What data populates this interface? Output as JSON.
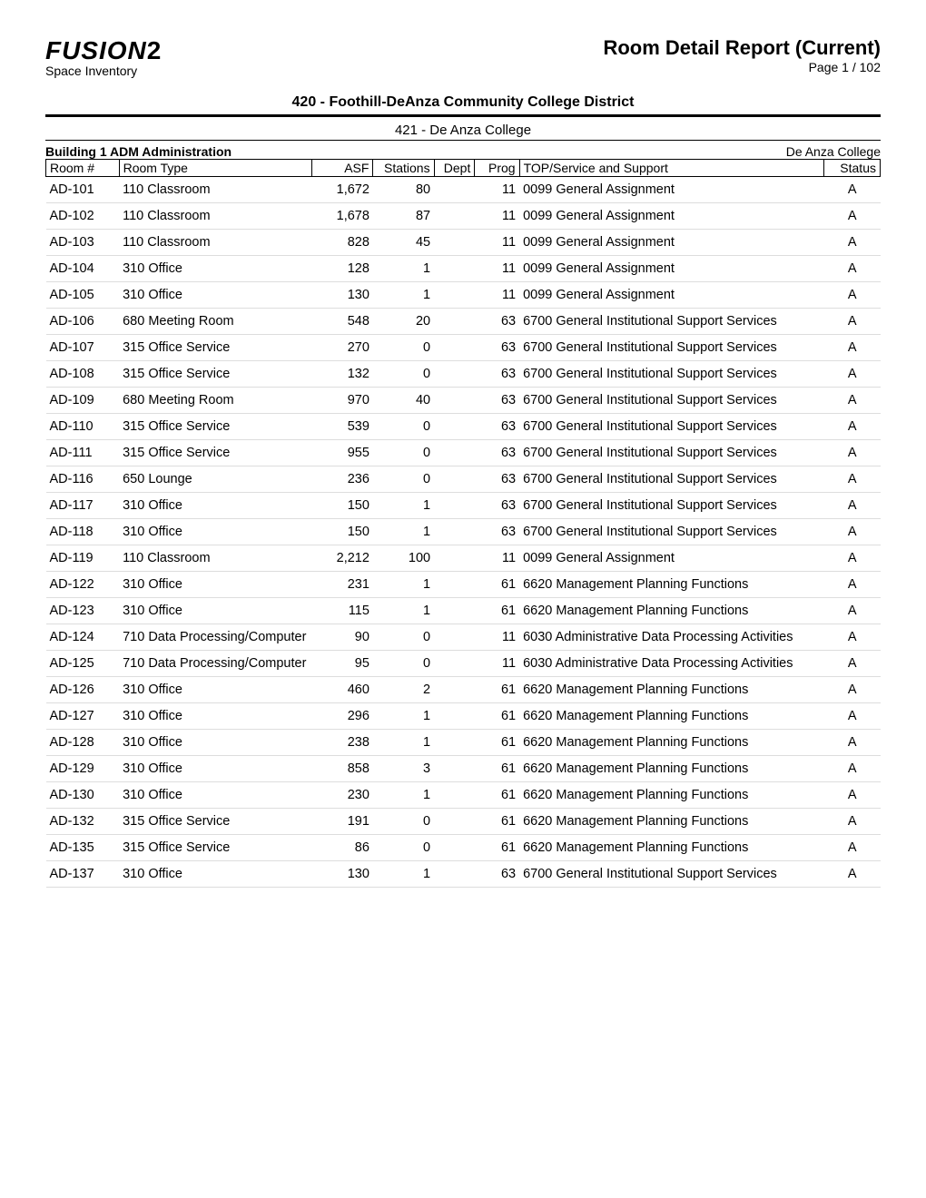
{
  "header": {
    "logo_main": "FUSION",
    "logo_suffix": "2",
    "logo_sub": "Space Inventory",
    "report_title": "Room Detail Report (Current)",
    "page_label": "Page 1 / 102"
  },
  "district_title": "420 - Foothill-DeAnza Community College District",
  "college_title": "421 - De Anza College",
  "building_left": "Building 1 ADM  Administration",
  "building_right": "De Anza College",
  "columns": {
    "room": "Room #",
    "type": "Room Type",
    "asf": "ASF",
    "stations": "Stations",
    "dept": "Dept",
    "prog": "Prog",
    "top": "TOP/Service and Support",
    "status": "Status"
  },
  "rows": [
    {
      "room": "AD-101",
      "type": "110 Classroom",
      "asf": "1,672",
      "stations": "80",
      "dept": "",
      "prog": "11",
      "top": "0099 General Assignment",
      "status": "A"
    },
    {
      "room": "AD-102",
      "type": "110 Classroom",
      "asf": "1,678",
      "stations": "87",
      "dept": "",
      "prog": "11",
      "top": "0099 General Assignment",
      "status": "A"
    },
    {
      "room": "AD-103",
      "type": "110 Classroom",
      "asf": "828",
      "stations": "45",
      "dept": "",
      "prog": "11",
      "top": "0099 General Assignment",
      "status": "A"
    },
    {
      "room": "AD-104",
      "type": "310 Office",
      "asf": "128",
      "stations": "1",
      "dept": "",
      "prog": "11",
      "top": "0099 General Assignment",
      "status": "A"
    },
    {
      "room": "AD-105",
      "type": "310 Office",
      "asf": "130",
      "stations": "1",
      "dept": "",
      "prog": "11",
      "top": "0099 General Assignment",
      "status": "A"
    },
    {
      "room": "AD-106",
      "type": "680 Meeting Room",
      "asf": "548",
      "stations": "20",
      "dept": "",
      "prog": "63",
      "top": "6700 General Institutional Support Services",
      "status": "A"
    },
    {
      "room": "AD-107",
      "type": "315 Office Service",
      "asf": "270",
      "stations": "0",
      "dept": "",
      "prog": "63",
      "top": "6700 General Institutional Support Services",
      "status": "A"
    },
    {
      "room": "AD-108",
      "type": "315 Office Service",
      "asf": "132",
      "stations": "0",
      "dept": "",
      "prog": "63",
      "top": "6700 General Institutional Support Services",
      "status": "A"
    },
    {
      "room": "AD-109",
      "type": "680 Meeting Room",
      "asf": "970",
      "stations": "40",
      "dept": "",
      "prog": "63",
      "top": "6700 General Institutional Support Services",
      "status": "A"
    },
    {
      "room": "AD-110",
      "type": "315 Office Service",
      "asf": "539",
      "stations": "0",
      "dept": "",
      "prog": "63",
      "top": "6700 General Institutional Support Services",
      "status": "A"
    },
    {
      "room": "AD-111",
      "type": "315 Office Service",
      "asf": "955",
      "stations": "0",
      "dept": "",
      "prog": "63",
      "top": "6700 General Institutional Support Services",
      "status": "A"
    },
    {
      "room": "AD-116",
      "type": "650 Lounge",
      "asf": "236",
      "stations": "0",
      "dept": "",
      "prog": "63",
      "top": "6700 General Institutional Support Services",
      "status": "A"
    },
    {
      "room": "AD-117",
      "type": "310 Office",
      "asf": "150",
      "stations": "1",
      "dept": "",
      "prog": "63",
      "top": "6700 General Institutional Support Services",
      "status": "A"
    },
    {
      "room": "AD-118",
      "type": "310 Office",
      "asf": "150",
      "stations": "1",
      "dept": "",
      "prog": "63",
      "top": "6700 General Institutional Support Services",
      "status": "A"
    },
    {
      "room": "AD-119",
      "type": "110 Classroom",
      "asf": "2,212",
      "stations": "100",
      "dept": "",
      "prog": "11",
      "top": "0099 General Assignment",
      "status": "A"
    },
    {
      "room": "AD-122",
      "type": "310 Office",
      "asf": "231",
      "stations": "1",
      "dept": "",
      "prog": "61",
      "top": "6620 Management Planning Functions",
      "status": "A"
    },
    {
      "room": "AD-123",
      "type": "310 Office",
      "asf": "115",
      "stations": "1",
      "dept": "",
      "prog": "61",
      "top": "6620 Management Planning Functions",
      "status": "A"
    },
    {
      "room": "AD-124",
      "type": "710 Data Processing/Computer",
      "asf": "90",
      "stations": "0",
      "dept": "",
      "prog": "11",
      "top": "6030 Administrative Data Processing Activities",
      "status": "A"
    },
    {
      "room": "AD-125",
      "type": "710 Data Processing/Computer",
      "asf": "95",
      "stations": "0",
      "dept": "",
      "prog": "11",
      "top": "6030 Administrative Data Processing Activities",
      "status": "A"
    },
    {
      "room": "AD-126",
      "type": "310 Office",
      "asf": "460",
      "stations": "2",
      "dept": "",
      "prog": "61",
      "top": "6620 Management Planning Functions",
      "status": "A"
    },
    {
      "room": "AD-127",
      "type": "310 Office",
      "asf": "296",
      "stations": "1",
      "dept": "",
      "prog": "61",
      "top": "6620 Management Planning Functions",
      "status": "A"
    },
    {
      "room": "AD-128",
      "type": "310 Office",
      "asf": "238",
      "stations": "1",
      "dept": "",
      "prog": "61",
      "top": "6620 Management Planning Functions",
      "status": "A"
    },
    {
      "room": "AD-129",
      "type": "310 Office",
      "asf": "858",
      "stations": "3",
      "dept": "",
      "prog": "61",
      "top": "6620 Management Planning Functions",
      "status": "A"
    },
    {
      "room": "AD-130",
      "type": "310 Office",
      "asf": "230",
      "stations": "1",
      "dept": "",
      "prog": "61",
      "top": "6620 Management Planning Functions",
      "status": "A"
    },
    {
      "room": "AD-132",
      "type": "315 Office Service",
      "asf": "191",
      "stations": "0",
      "dept": "",
      "prog": "61",
      "top": "6620 Management Planning Functions",
      "status": "A"
    },
    {
      "room": "AD-135",
      "type": "315 Office Service",
      "asf": "86",
      "stations": "0",
      "dept": "",
      "prog": "61",
      "top": "6620 Management Planning Functions",
      "status": "A"
    },
    {
      "room": "AD-137",
      "type": "310 Office",
      "asf": "130",
      "stations": "1",
      "dept": "",
      "prog": "63",
      "top": "6700 General Institutional Support Services",
      "status": "A"
    }
  ]
}
